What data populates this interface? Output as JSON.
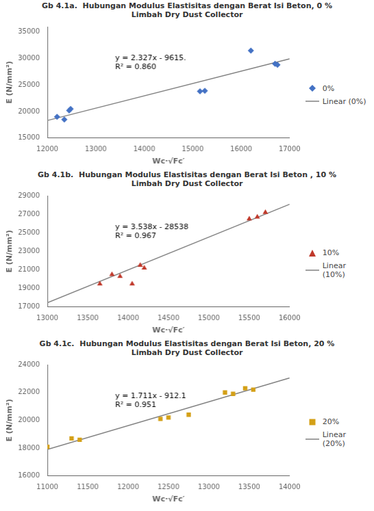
{
  "chart_data": [
    {
      "type": "scatter",
      "title": "Gb 4.1a.  Hubungan Modulus Elastisitas dengan Berat Isi Beton, 0 %\nLimbah Dry Dust Collector",
      "x_label": "Wc·√Fc′",
      "y_label": "E (N/mm²)",
      "xlim": [
        12000,
        17000
      ],
      "ylim": [
        15000,
        36000
      ],
      "xticks": [
        12000,
        13000,
        14000,
        15000,
        16000,
        17000
      ],
      "yticks": [
        15000,
        20000,
        25000,
        30000,
        35000
      ],
      "grid": false,
      "legend": "right",
      "annotations": [
        "y = 2.327x - 9615.",
        "R² = 0.860"
      ],
      "series": [
        {
          "name": "0%",
          "type": "scatter",
          "marker": "diamond",
          "color": "#4472C4",
          "x": [
            12200,
            12350,
            12450,
            12480,
            15150,
            15250,
            16200,
            16700,
            16750
          ],
          "values": [
            19000,
            18500,
            20200,
            20500,
            23800,
            23900,
            31500,
            29000,
            28800
          ]
        },
        {
          "name": "Linear (0%)",
          "type": "line",
          "color": "#808080",
          "x": [
            12000,
            17000
          ],
          "values": [
            18309,
            29944
          ]
        }
      ]
    },
    {
      "type": "scatter",
      "title": "Gb 4.1b.  Hubungan Modulus Elastisitas dengan Berat Isi Beton , 10 %\nLimbah Dry Dust Collector",
      "x_label": "Wc·√Fc′",
      "y_label": "E (N/mm²)",
      "xlim": [
        13000,
        16000
      ],
      "ylim": [
        17000,
        29000
      ],
      "xticks": [
        13000,
        13500,
        14000,
        14500,
        15000,
        15500,
        16000
      ],
      "yticks": [
        17000,
        19000,
        21000,
        23000,
        25000,
        27000,
        29000
      ],
      "grid": false,
      "legend": "right",
      "annotations": [
        "y = 3.538x - 28538",
        "R² = 0.967"
      ],
      "series": [
        {
          "name": "10%",
          "type": "scatter",
          "marker": "triangle",
          "color": "#C0392B",
          "x": [
            13650,
            13800,
            13900,
            14050,
            14150,
            14200,
            15500,
            15600,
            15700
          ],
          "values": [
            19500,
            20500,
            20300,
            19500,
            21500,
            21200,
            26500,
            26700,
            27200
          ]
        },
        {
          "name": "Linear\n(10%)",
          "type": "line",
          "color": "#808080",
          "x": [
            13000,
            16000
          ],
          "values": [
            17456,
            28070
          ]
        }
      ]
    },
    {
      "type": "scatter",
      "title": "Gb 4.1c.  Hubungan Modulus Elastisitas dengan Berat Isi Beton, 20 %\nLimbah Dry Dust Collector",
      "x_label": "Wc·√Fc′",
      "y_label": "E (N/mm²)",
      "xlim": [
        11000,
        14000
      ],
      "ylim": [
        16000,
        24000
      ],
      "xticks": [
        11000,
        11500,
        12000,
        12500,
        13000,
        13500,
        14000
      ],
      "yticks": [
        16000,
        18000,
        20000,
        22000,
        24000
      ],
      "grid": false,
      "legend": "right",
      "annotations": [
        "y = 1.711x - 912.1",
        "R² = 0.951"
      ],
      "series": [
        {
          "name": "20%",
          "type": "scatter",
          "marker": "square",
          "color": "#D4A017",
          "x": [
            11000,
            11300,
            11400,
            12400,
            12500,
            12750,
            13200,
            13300,
            13450,
            13550
          ],
          "values": [
            18100,
            18700,
            18600,
            20100,
            20200,
            20400,
            22000,
            21900,
            22300,
            22200
          ]
        },
        {
          "name": "Linear\n(20%)",
          "type": "line",
          "color": "#808080",
          "x": [
            11000,
            14000
          ],
          "values": [
            17908.9,
            23041.9
          ]
        }
      ]
    }
  ]
}
